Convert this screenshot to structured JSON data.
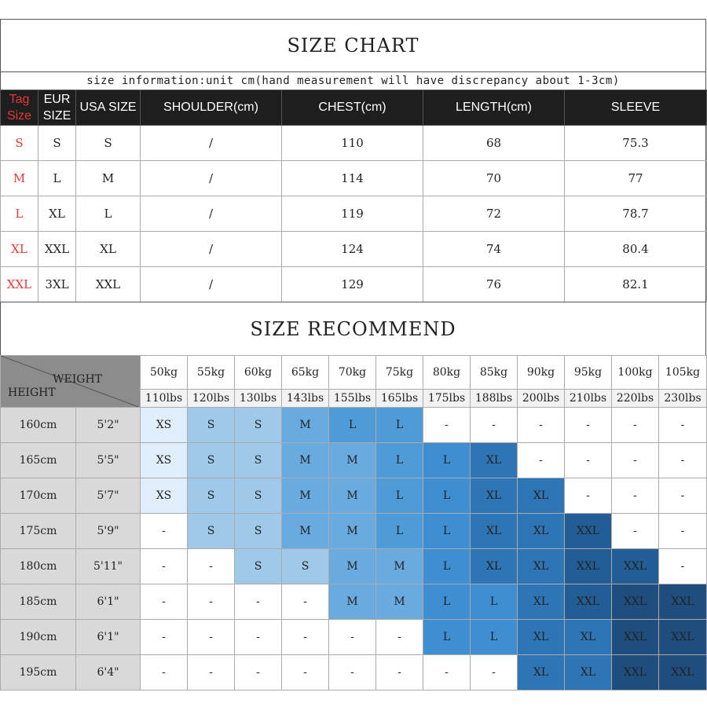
{
  "title": "SIZE CHART",
  "note": "size information:unit cm(hand measurement will have discrepancy about 1-3cm)",
  "size_table": {
    "headers": {
      "tag_line1": "Tag",
      "tag_line2": "Size",
      "eur_line1": "EUR",
      "eur_line2": "SIZE",
      "usa": "USA SIZE",
      "shoulder": "SHOULDER(cm)",
      "chest": "CHEST(cm)",
      "length": "LENGTH(cm)",
      "sleeve": "SLEEVE"
    },
    "rows": [
      {
        "tag": "S",
        "eur": "S",
        "usa": "S",
        "shoulder": "/",
        "chest": "110",
        "length": "68",
        "sleeve": "75.3"
      },
      {
        "tag": "M",
        "eur": "L",
        "usa": "M",
        "shoulder": "/",
        "chest": "114",
        "length": "70",
        "sleeve": "77"
      },
      {
        "tag": "L",
        "eur": "XL",
        "usa": "L",
        "shoulder": "/",
        "chest": "119",
        "length": "72",
        "sleeve": "78.7"
      },
      {
        "tag": "XL",
        "eur": "XXL",
        "usa": "XL",
        "shoulder": "/",
        "chest": "124",
        "length": "74",
        "sleeve": "80.4"
      },
      {
        "tag": "XXL",
        "eur": "3XL",
        "usa": "XXL",
        "shoulder": "/",
        "chest": "129",
        "length": "76",
        "sleeve": "82.1"
      }
    ]
  },
  "recommend": {
    "title": "SIZE RECOMMEND",
    "weight_label": "WEIGHT",
    "height_label": "HEIGHT",
    "weights_kg": [
      "50kg",
      "55kg",
      "60kg",
      "65kg",
      "70kg",
      "75kg",
      "80kg",
      "85kg",
      "90kg",
      "95kg",
      "100kg",
      "105kg"
    ],
    "weights_lbs": [
      "110lbs",
      "120lbs",
      "130lbs",
      "143lbs",
      "155lbs",
      "165lbs",
      "175lbs",
      "188lbs",
      "200lbs",
      "210lbs",
      "220lbs",
      "230lbs"
    ],
    "rows": [
      {
        "cm": "160cm",
        "ft": "5'2\"",
        "cells": [
          "XS",
          "S",
          "S",
          "M",
          "L",
          "L",
          "-",
          "-",
          "-",
          "-",
          "-",
          "-"
        ],
        "shades": [
          1,
          2,
          2,
          3,
          4,
          4,
          0,
          0,
          0,
          0,
          0,
          0
        ]
      },
      {
        "cm": "165cm",
        "ft": "5'5\"",
        "cells": [
          "XS",
          "S",
          "S",
          "M",
          "M",
          "L",
          "L",
          "XL",
          "-",
          "-",
          "-",
          "-"
        ],
        "shades": [
          1,
          2,
          2,
          3,
          3,
          4,
          5,
          6,
          0,
          0,
          0,
          0
        ]
      },
      {
        "cm": "170cm",
        "ft": "5'7\"",
        "cells": [
          "XS",
          "S",
          "S",
          "M",
          "M",
          "L",
          "L",
          "XL",
          "XL",
          "-",
          "-",
          "-"
        ],
        "shades": [
          1,
          2,
          2,
          3,
          3,
          4,
          5,
          6,
          6,
          0,
          0,
          0
        ]
      },
      {
        "cm": "175cm",
        "ft": "5'9\"",
        "cells": [
          "-",
          "S",
          "S",
          "M",
          "M",
          "L",
          "L",
          "XL",
          "XL",
          "XXL",
          "-",
          "-"
        ],
        "shades": [
          0,
          2,
          2,
          3,
          3,
          4,
          5,
          6,
          6,
          7,
          0,
          0
        ]
      },
      {
        "cm": "180cm",
        "ft": "5'11\"",
        "cells": [
          "-",
          "-",
          "S",
          "S",
          "M",
          "M",
          "L",
          "XL",
          "XL",
          "XXL",
          "XXL",
          "-"
        ],
        "shades": [
          0,
          0,
          2,
          2,
          3,
          3,
          5,
          6,
          6,
          7,
          7,
          0
        ]
      },
      {
        "cm": "185cm",
        "ft": "6'1\"",
        "cells": [
          "-",
          "-",
          "-",
          "-",
          "M",
          "M",
          "L",
          "L",
          "XL",
          "XXL",
          "XXL",
          "XXL"
        ],
        "shades": [
          0,
          0,
          0,
          0,
          3,
          3,
          5,
          5,
          6,
          7,
          8,
          8
        ]
      },
      {
        "cm": "190cm",
        "ft": "6'1\"",
        "cells": [
          "-",
          "-",
          "-",
          "-",
          "-",
          "-",
          "L",
          "L",
          "XL",
          "XL",
          "XXL",
          "XXL"
        ],
        "shades": [
          0,
          0,
          0,
          0,
          0,
          0,
          5,
          5,
          6,
          6,
          8,
          8
        ]
      },
      {
        "cm": "195cm",
        "ft": "6'4\"",
        "cells": [
          "-",
          "-",
          "-",
          "-",
          "-",
          "-",
          "-",
          "-",
          "XL",
          "XL",
          "XXL",
          "XXL"
        ],
        "shades": [
          0,
          0,
          0,
          0,
          0,
          0,
          0,
          0,
          6,
          6,
          8,
          8
        ]
      }
    ]
  }
}
